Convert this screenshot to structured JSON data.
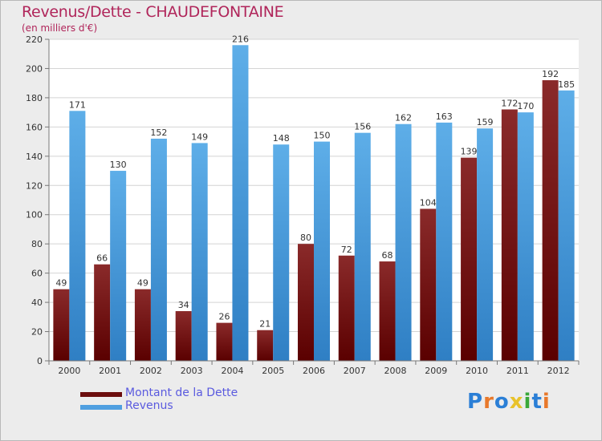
{
  "chart_data": {
    "type": "bar",
    "title": "Revenus/Dette - CHAUDEFONTAINE",
    "subtitle": "(en milliers d'€)",
    "categories": [
      "2000",
      "2001",
      "2002",
      "2003",
      "2004",
      "2005",
      "2006",
      "2007",
      "2008",
      "2009",
      "2010",
      "2011",
      "2012"
    ],
    "series": [
      {
        "name": "Montant de la Dette",
        "color": "#6b0d0d",
        "values": [
          49,
          66,
          49,
          34,
          26,
          21,
          80,
          72,
          68,
          104,
          139,
          172,
          192
        ]
      },
      {
        "name": "Revenus",
        "color": "#4f9fe0",
        "values": [
          171,
          130,
          152,
          149,
          216,
          148,
          150,
          156,
          162,
          163,
          159,
          170,
          185
        ]
      }
    ],
    "ylim": [
      0,
      220
    ],
    "yticks": [
      0,
      20,
      40,
      60,
      80,
      100,
      120,
      140,
      160,
      180,
      200,
      220
    ],
    "grid": true,
    "legend_position": "bottom-left"
  },
  "logo": {
    "text": "Proxiti",
    "colors": [
      "#2b7fd6",
      "#e8792b",
      "#2b7fd6",
      "#e8c22b",
      "#3aa83a",
      "#2b7fd6",
      "#e8792b"
    ]
  }
}
